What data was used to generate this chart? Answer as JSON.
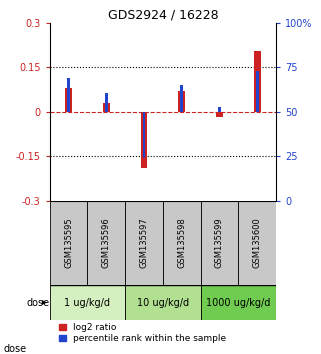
{
  "title": "GDS2924 / 16228",
  "samples": [
    "GSM135595",
    "GSM135596",
    "GSM135597",
    "GSM135598",
    "GSM135599",
    "GSM135600"
  ],
  "log2_ratio": [
    0.082,
    0.03,
    -0.19,
    0.072,
    -0.018,
    0.205
  ],
  "percentile_raw": [
    0.115,
    0.065,
    -0.155,
    0.09,
    0.018,
    0.138
  ],
  "ylim": [
    -0.3,
    0.3
  ],
  "yticks_left": [
    -0.3,
    -0.15,
    0,
    0.15,
    0.3
  ],
  "yticks_right": [
    0,
    25,
    50,
    75,
    100
  ],
  "ytick_right_pos": [
    -0.3,
    -0.15,
    0,
    0.15,
    0.3
  ],
  "hline_dotted": [
    0.15,
    -0.15
  ],
  "hline_dashed": 0,
  "dose_groups": [
    {
      "label": "1 ug/kg/d",
      "start": 0,
      "end": 2,
      "color": "#d4f0c0"
    },
    {
      "label": "10 ug/kg/d",
      "start": 2,
      "end": 4,
      "color": "#b0e090"
    },
    {
      "label": "1000 ug/kg/d",
      "start": 4,
      "end": 6,
      "color": "#70cc50"
    }
  ],
  "red_bar_width": 0.18,
  "blue_bar_width": 0.07,
  "red_color": "#cc2222",
  "blue_color": "#2244cc",
  "axis_left_color": "#cc2222",
  "axis_right_color": "#2244cc",
  "bg_label": "#c8c8c8",
  "dose_label": "dose",
  "legend_red": "log2 ratio",
  "legend_blue": "percentile rank within the sample"
}
